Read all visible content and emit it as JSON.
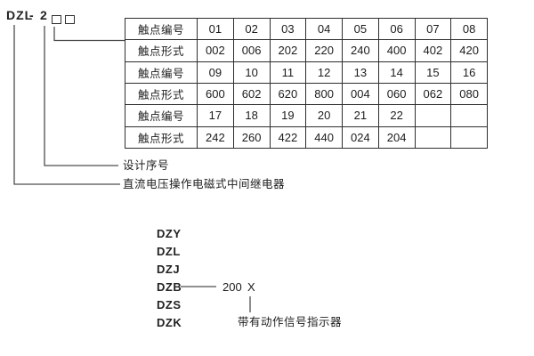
{
  "model_header": {
    "name": "DZL",
    "dash": "-",
    "design_number": "2"
  },
  "table": {
    "rows": [
      {
        "label": "触点编号",
        "values": [
          "01",
          "02",
          "03",
          "04",
          "05",
          "06",
          "07",
          "08"
        ]
      },
      {
        "label": "触点形式",
        "values": [
          "002",
          "006",
          "202",
          "220",
          "240",
          "400",
          "402",
          "420"
        ]
      },
      {
        "label": "触点编号",
        "values": [
          "09",
          "10",
          "11",
          "12",
          "13",
          "14",
          "15",
          "16"
        ]
      },
      {
        "label": "触点形式",
        "values": [
          "600",
          "602",
          "620",
          "800",
          "004",
          "060",
          "062",
          "080"
        ]
      },
      {
        "label": "触点编号",
        "values": [
          "17",
          "18",
          "19",
          "20",
          "21",
          "22",
          "",
          ""
        ]
      },
      {
        "label": "触点形式",
        "values": [
          "242",
          "260",
          "422",
          "440",
          "024",
          "204",
          "",
          ""
        ]
      }
    ]
  },
  "callouts": {
    "design_serial_label": "设计序号",
    "relay_type_label": "直流电压操作电磁式中间继电器"
  },
  "model_series": {
    "items": [
      "DZY",
      "DZL",
      "DZJ",
      "DZB",
      "DZS",
      "DZK"
    ],
    "dzb_number": "200",
    "dzb_variant": "X",
    "indicator_label": "带有动作信号指示器"
  },
  "colors": {
    "background": "#ffffff",
    "text": "#1c1c1c",
    "table_border": "#2e2e2e",
    "connector_line": "#4d4d4d"
  }
}
